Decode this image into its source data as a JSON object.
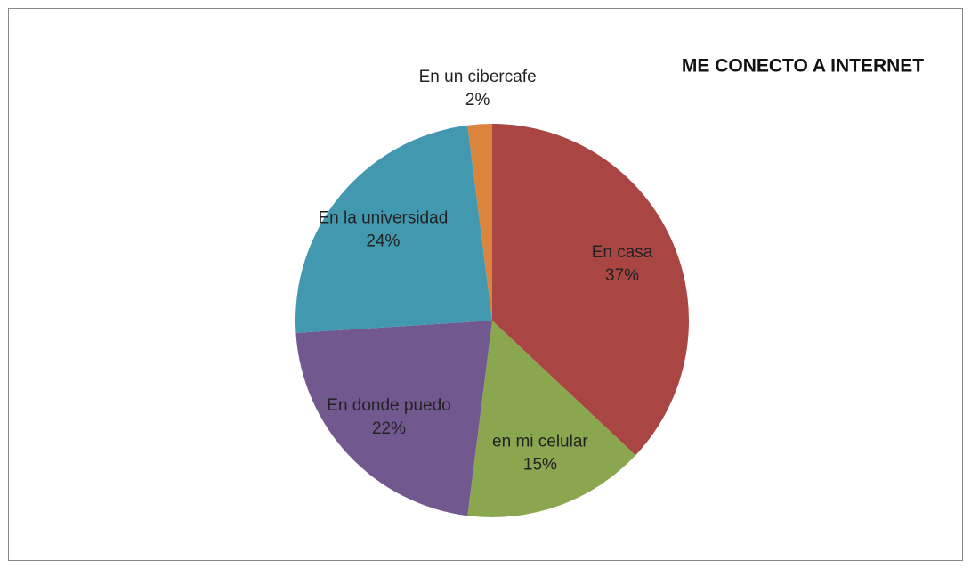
{
  "chart_data": {
    "type": "pie",
    "title": "ME CONECTO A INTERNET",
    "categories": [
      "En casa",
      "en mi celular",
      "En donde puedo",
      "En la universidad",
      "En un cibercafe"
    ],
    "values": [
      37,
      15,
      22,
      24,
      2
    ],
    "value_labels": [
      "37%",
      "15%",
      "22%",
      "24%",
      "2%"
    ],
    "colors": [
      "#a94643",
      "#8aa64f",
      "#71588f",
      "#4198af",
      "#db843d"
    ]
  }
}
